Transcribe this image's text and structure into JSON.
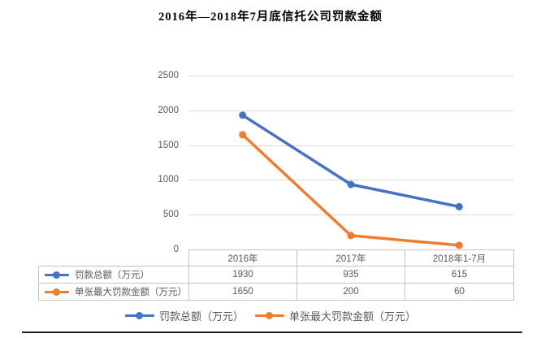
{
  "title": "2016年—2018年7月底信托公司罚款金额",
  "colors": {
    "series1": "#4472C4",
    "series2": "#ED7D31",
    "gridline": "#D9D9D9",
    "axis_text": "#595959",
    "table_border": "#C3C3C3"
  },
  "chart_data": {
    "type": "line",
    "title": "2016年—2018年7月底信托公司罚款金额",
    "categories": [
      "2016年",
      "2017年",
      "2018年1-7月"
    ],
    "series": [
      {
        "name": "罚款总额（万元）",
        "values": [
          1930,
          935,
          615
        ],
        "color": "#4472C4"
      },
      {
        "name": "单张最大罚款金额（万元）",
        "values": [
          1650,
          200,
          60
        ],
        "color": "#ED7D31"
      }
    ],
    "xlabel": "",
    "ylabel": "",
    "ylim": [
      0,
      2500
    ],
    "yticks": [
      0,
      500,
      1000,
      1500,
      2000,
      2500
    ],
    "grid": true,
    "legend_position": "bottom",
    "data_table_shown": true
  },
  "table": {
    "headers": [
      "2016年",
      "2017年",
      "2018年1-7月"
    ],
    "rows": [
      {
        "label": "罚款总额（万元）",
        "values": [
          "1930",
          "935",
          "615"
        ]
      },
      {
        "label": "单张最大罚款金额（万元）",
        "values": [
          "1650",
          "200",
          "60"
        ]
      }
    ]
  },
  "legend": {
    "items": [
      {
        "label": "罚款总额（万元）"
      },
      {
        "label": "单张最大罚款金额（万元）"
      }
    ]
  }
}
